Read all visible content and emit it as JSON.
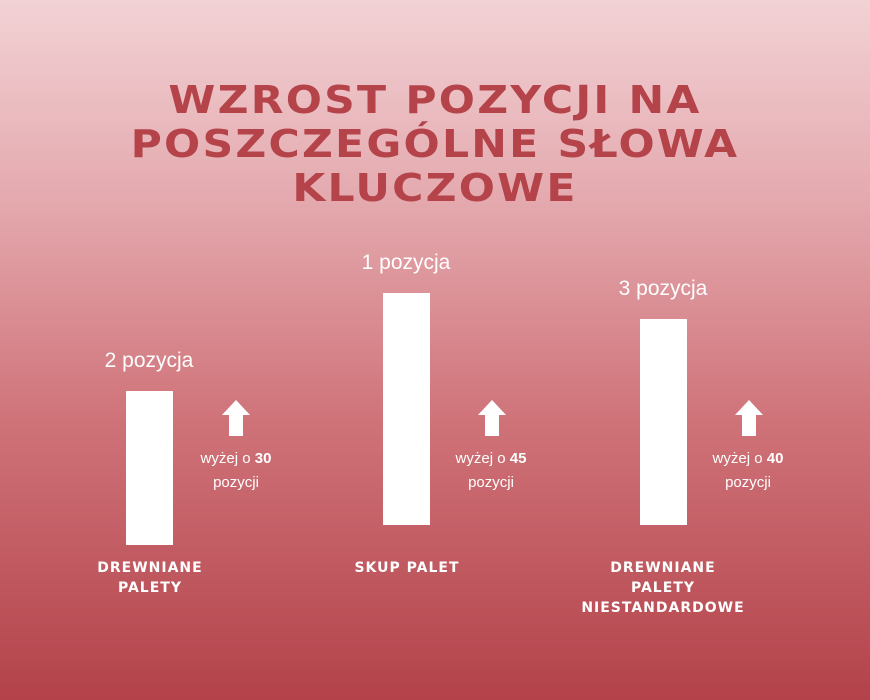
{
  "chart_data": {
    "type": "bar",
    "title_lines": [
      "WZROST POZYCJI NA",
      "POSZCZEGÓLNE SŁOWA",
      "KLUCZOWE"
    ],
    "categories": [
      {
        "lines": [
          "DREWNIANE",
          "PALETY"
        ]
      },
      {
        "lines": [
          "SKUP PALET"
        ]
      },
      {
        "lines": [
          "DREWNIANE",
          "PALETY",
          "NIESTANDARDOWE"
        ]
      }
    ],
    "position_labels": [
      "2 pozycja",
      "1 pozycja",
      "3 pozycja"
    ],
    "positions": [
      2,
      1,
      3
    ],
    "gain_prefix": "wyżej o",
    "gain_suffix": "pozycji",
    "gains": [
      "30",
      "45",
      "40"
    ],
    "values": [
      30,
      45,
      40
    ],
    "icon": "arrow-up-icon",
    "colors": {
      "title": "#b5434a",
      "bars": "#ffffff",
      "background_top": "#f2d2d5",
      "background_bottom": "#b3424a"
    }
  }
}
